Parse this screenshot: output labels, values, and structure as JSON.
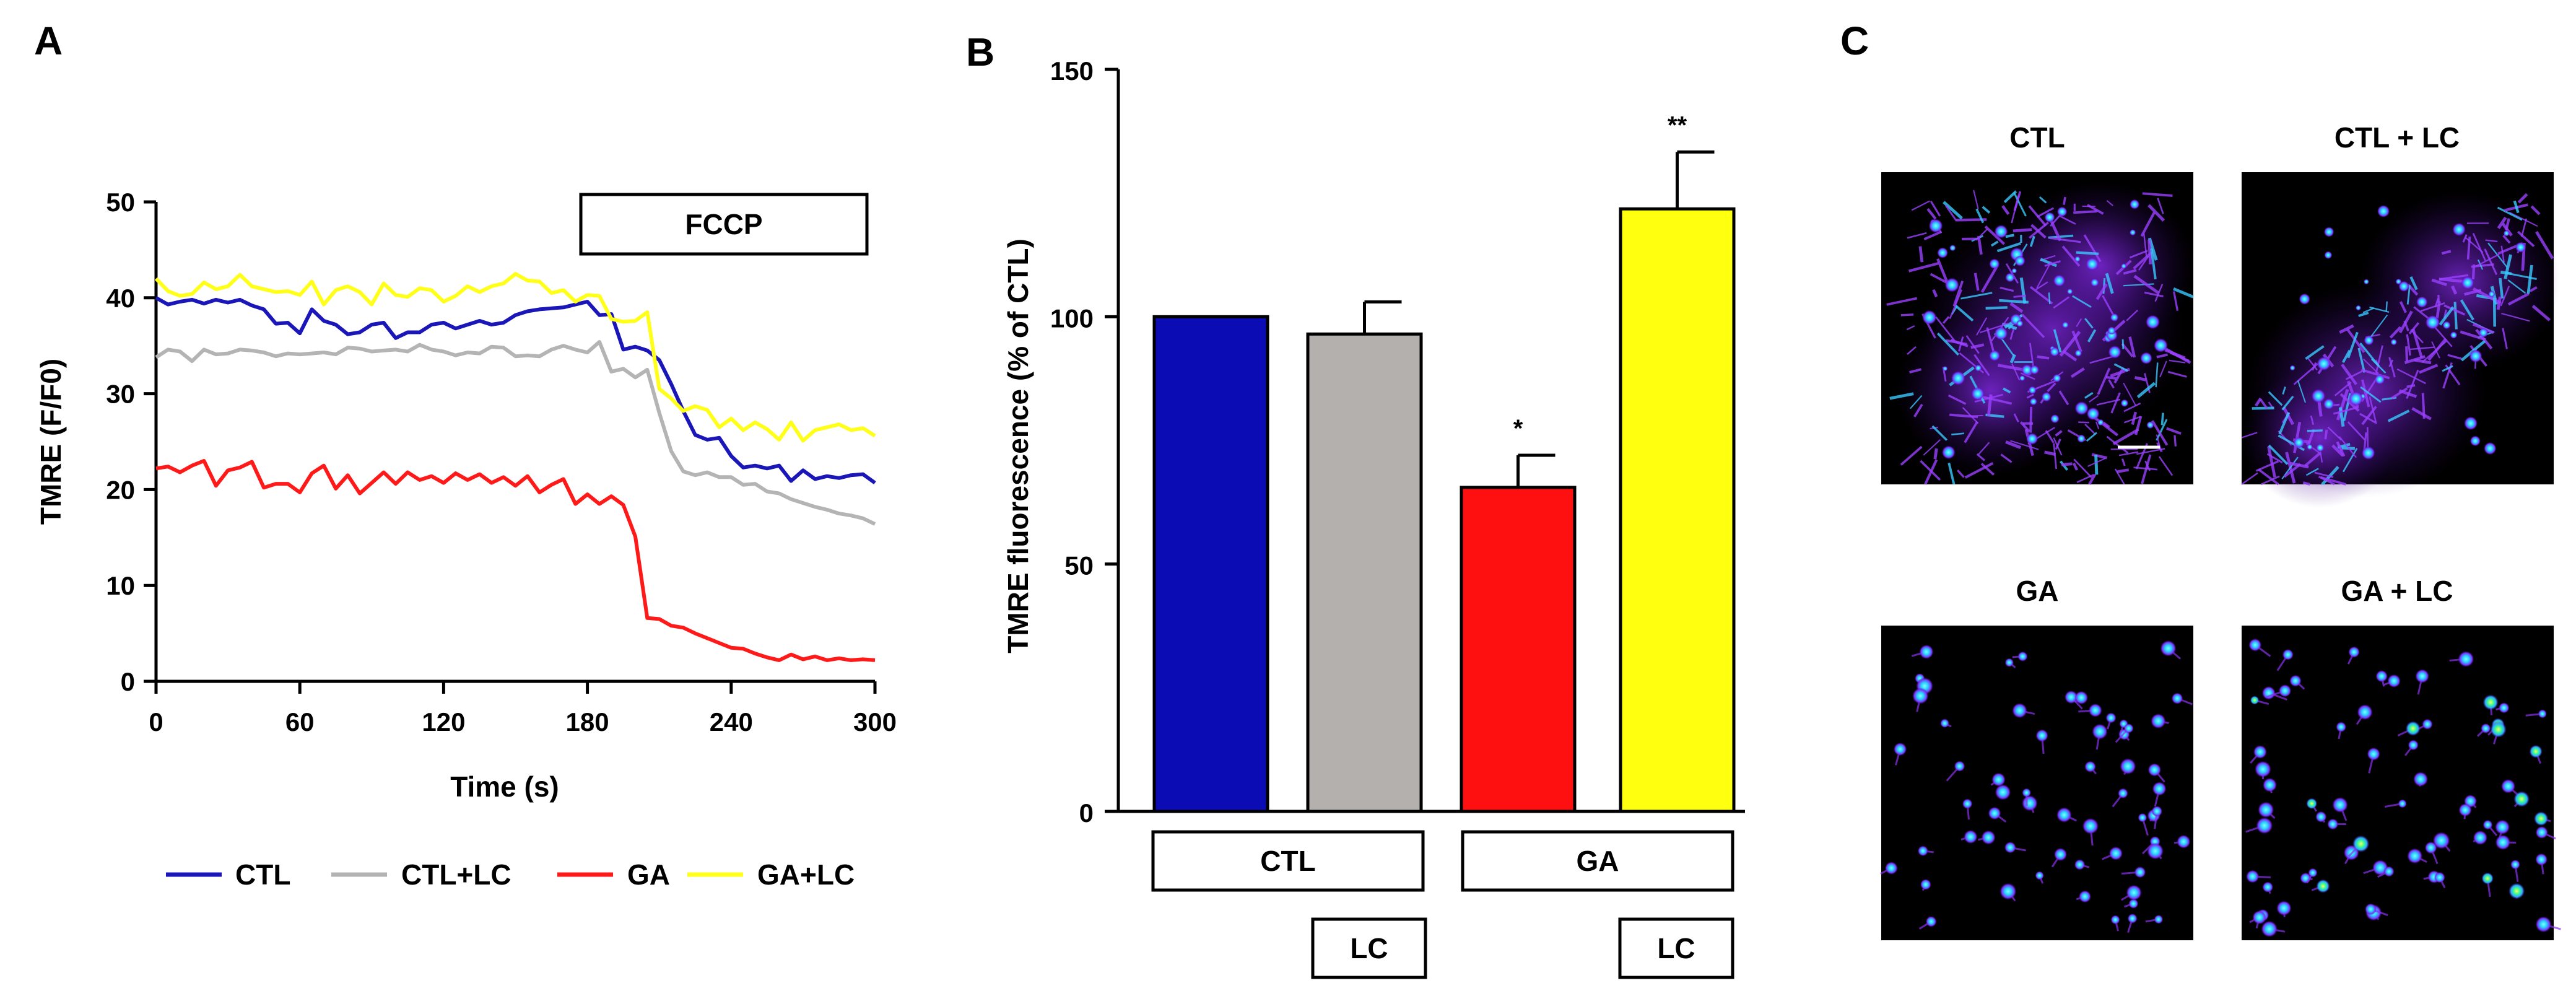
{
  "panels": {
    "a": {
      "letter": "A"
    },
    "b": {
      "letter": "B"
    },
    "c": {
      "letter": "C"
    }
  },
  "chart_data": [
    {
      "type": "line",
      "panel": "A",
      "xlabel": "Time (s)",
      "ylabel": "TMRE (F/F0)",
      "xlim": [
        0,
        300
      ],
      "ylim": [
        0,
        50
      ],
      "xticks": [
        0,
        60,
        120,
        180,
        240,
        300
      ],
      "yticks": [
        0,
        10,
        20,
        30,
        40,
        50
      ],
      "annotation": {
        "label": "FCCP",
        "x_start": 180,
        "x_end": 300
      },
      "x": [
        0,
        5,
        10,
        15,
        20,
        25,
        30,
        35,
        40,
        45,
        50,
        55,
        60,
        65,
        70,
        75,
        80,
        85,
        90,
        95,
        100,
        105,
        110,
        115,
        120,
        125,
        130,
        135,
        140,
        145,
        150,
        155,
        160,
        165,
        170,
        175,
        180,
        185,
        190,
        195,
        200,
        205,
        210,
        215,
        220,
        225,
        230,
        235,
        240,
        245,
        250,
        255,
        260,
        265,
        270,
        275,
        280,
        285,
        290,
        295,
        300
      ],
      "series": [
        {
          "name": "CTL",
          "color": "#1a16b8",
          "values": [
            40,
            39.3,
            39.6,
            39.8,
            39.4,
            39.8,
            39.5,
            39.8,
            39.2,
            38.8,
            37.3,
            37.4,
            36.3,
            38.8,
            37.6,
            37.2,
            36.2,
            36.4,
            37.2,
            37.4,
            35.8,
            36.4,
            36.4,
            37.2,
            37.4,
            36.8,
            37.2,
            37.6,
            37.2,
            37.4,
            38.2,
            38.6,
            38.8,
            38.9,
            39,
            39.3,
            39.6,
            38.2,
            38.3,
            34.6,
            34.9,
            34.5,
            33.5,
            31,
            28.2,
            25.7,
            25.2,
            25.4,
            23.5,
            22.3,
            22.5,
            22.2,
            22.5,
            20.9,
            22,
            21.1,
            21.4,
            21.2,
            21.5,
            21.6,
            20.7
          ]
        },
        {
          "name": "CTL+LC",
          "color": "#b4b4b4",
          "values": [
            33.8,
            34.6,
            34.4,
            33.4,
            34.6,
            34.1,
            34.2,
            34.6,
            34.5,
            34.3,
            33.9,
            34.2,
            34.1,
            34.2,
            34.3,
            34.1,
            34.8,
            34.7,
            34.4,
            34.5,
            34.6,
            34.4,
            35.1,
            34.6,
            34.4,
            34,
            34.3,
            34.2,
            34.9,
            34.8,
            33.9,
            34,
            33.9,
            34.6,
            35,
            34.6,
            34.3,
            35.4,
            32.3,
            32.6,
            31.7,
            32.5,
            28,
            24,
            21.9,
            21.5,
            21.8,
            21.3,
            21.3,
            20.5,
            20.6,
            19.8,
            19.6,
            19,
            18.6,
            18.2,
            17.9,
            17.5,
            17.3,
            17,
            16.4
          ]
        },
        {
          "name": "GA",
          "color": "#ff1a1a",
          "values": [
            22.2,
            22.4,
            21.8,
            22.5,
            23,
            20.4,
            22,
            22.3,
            22.9,
            20.2,
            20.6,
            20.6,
            19.7,
            21.7,
            22.5,
            20.1,
            21.5,
            19.6,
            20.7,
            21.8,
            20.6,
            21.8,
            21,
            21.4,
            20.7,
            21.7,
            21,
            21.6,
            20.7,
            21.3,
            20.4,
            21.4,
            19.7,
            20.5,
            21.1,
            18.5,
            19.5,
            18.5,
            19.3,
            18.4,
            15.1,
            6.6,
            6.5,
            5.8,
            5.6,
            5,
            4.5,
            4,
            3.5,
            3.4,
            2.9,
            2.5,
            2.2,
            2.8,
            2.3,
            2.6,
            2.2,
            2.4,
            2.2,
            2.3,
            2.2
          ]
        },
        {
          "name": "GA+LC",
          "color": "#ffff1a",
          "values": [
            42,
            40.7,
            40.2,
            40.4,
            41.6,
            40.9,
            41.2,
            42.4,
            41.2,
            40.9,
            40.6,
            40.7,
            40.3,
            41.7,
            39.3,
            40.8,
            41.2,
            40.6,
            39.3,
            41.5,
            40.3,
            40.1,
            41,
            40.8,
            39.6,
            40.2,
            41.2,
            40.6,
            41.2,
            41.5,
            42.5,
            41.8,
            41.7,
            40.5,
            40.8,
            39.6,
            40.3,
            40.2,
            37.8,
            37.5,
            37.6,
            38.5,
            30.5,
            29.5,
            28.2,
            28.7,
            28.3,
            26.5,
            27.4,
            26.2,
            27,
            26.3,
            25.2,
            27,
            25.1,
            26.2,
            26.5,
            26.8,
            26.2,
            26.4,
            25.6
          ]
        }
      ]
    },
    {
      "type": "bar",
      "panel": "B",
      "ylabel": "TMRE fluorescence (% of CTL)",
      "ylim": [
        0,
        150
      ],
      "yticks": [
        0,
        50,
        100,
        150
      ],
      "categories": [
        "CTL",
        "CTL + LC",
        "GA",
        "GA + LC"
      ],
      "values": [
        100,
        96.5,
        65.5,
        121.8
      ],
      "errors": [
        0,
        6.5,
        6.5,
        11.5
      ],
      "colors": [
        "#0c0cb4",
        "#b4b0ae",
        "#ff1010",
        "#ffff10"
      ],
      "significance": [
        "",
        "",
        "*",
        "**"
      ],
      "group_boxes": {
        "treatment_labels": [
          "CTL",
          "GA"
        ],
        "lc_labels": [
          "LC",
          "LC"
        ]
      }
    }
  ],
  "panel_c": {
    "titles": [
      "CTL",
      "CTL + LC",
      "GA",
      "GA + LC"
    ]
  }
}
